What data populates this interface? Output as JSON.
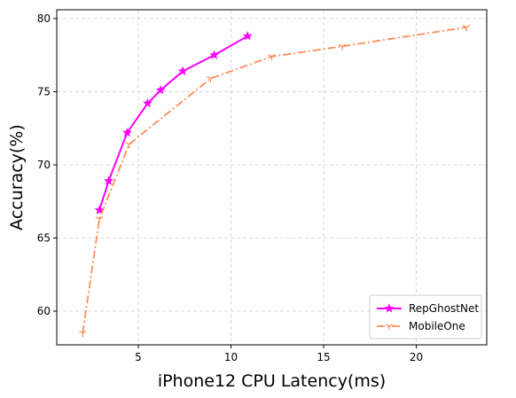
{
  "chart_data": {
    "type": "line",
    "xlabel": "iPhone12 CPU Latency(ms)",
    "ylabel": "Accuracy(%)",
    "xlim": [
      0.6,
      23.8
    ],
    "ylim": [
      57.7,
      80.6
    ],
    "xticks": [
      5,
      10,
      15,
      20
    ],
    "yticks": [
      60,
      65,
      70,
      75,
      80
    ],
    "grid": true,
    "legend_position": "lower-right",
    "series": [
      {
        "name": "RepGhostNet",
        "color": "#ff00ff",
        "marker": "star",
        "linestyle": "solid",
        "x": [
          2.9,
          3.4,
          4.4,
          5.5,
          6.2,
          7.4,
          9.1,
          10.9
        ],
        "y": [
          66.9,
          68.9,
          72.2,
          74.2,
          75.1,
          76.4,
          77.5,
          78.8
        ]
      },
      {
        "name": "MobileOne",
        "color": "#ff8c5a",
        "marker": "tri_down",
        "linestyle": "dashdot",
        "x": [
          2.0,
          2.9,
          4.5,
          8.9,
          12.2,
          16.0,
          22.7
        ],
        "y": [
          58.5,
          66.3,
          71.4,
          75.9,
          77.4,
          78.1,
          79.4
        ]
      }
    ]
  }
}
